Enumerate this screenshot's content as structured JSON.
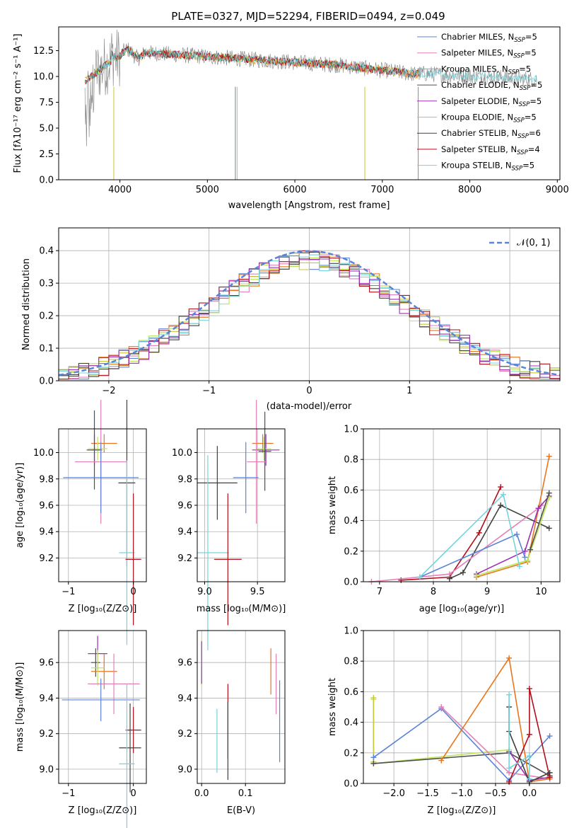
{
  "title": "PLATE=0327, MJD=52294, FIBERID=0494, z=0.049",
  "colors": {
    "chabrier_miles": "#5b84d6",
    "salpeter_miles": "#e57fb8",
    "kroupa_miles": "#56b4d3",
    "chabrier_elodie": "#4f4f4f",
    "salpeter_elodie": "#9b30b3",
    "kroupa_elodie": "#c7c73a",
    "chabrier_stelib": "#404040",
    "salpeter_stelib": "#b0101a",
    "kroupa_stelib": "#74d3dc",
    "orange": "#e8761e",
    "lime": "#bde65a",
    "gray": "#808080"
  },
  "chart_data": [
    {
      "id": "spectrum",
      "type": "line",
      "xlabel": "wavelength [Angstrom, rest frame]",
      "ylabel": "Flux [fλ10⁻¹⁷ erg cm⁻² s⁻¹ A⁻¹]",
      "xlim": [
        3300,
        9030
      ],
      "ylim": [
        0,
        14.8
      ],
      "xticks": [
        "4000",
        "5000",
        "6000",
        "7000",
        "8000",
        "9000"
      ],
      "yticks": [
        "0.0",
        "2.5",
        "5.0",
        "7.5",
        "10.0",
        "12.5"
      ],
      "legend_position": "top-right",
      "legend": [
        {
          "label": "Chabrier MILES, N",
          "sub": "SSP",
          "n": "=5",
          "color": "#5b84d6"
        },
        {
          "label": "Salpeter MILES, N",
          "sub": "SSP",
          "n": "=5",
          "color": "#e57fb8"
        },
        {
          "label": "Kroupa MILES, N",
          "sub": "SSP",
          "n": "=5",
          "color": "#56b4d3"
        },
        {
          "label": "Chabrier ELODIE, N",
          "sub": "SSP",
          "n": "=5",
          "color": "#4f4f4f"
        },
        {
          "label": "Salpeter ELODIE, N",
          "sub": "SSP",
          "n": "=5",
          "color": "#9b30b3"
        },
        {
          "label": "Kroupa ELODIE, N",
          "sub": "SSP",
          "n": "=5",
          "color": "#c7c73a"
        },
        {
          "label": "Chabrier STELIB, N",
          "sub": "SSP",
          "n": "=6",
          "color": "#404040"
        },
        {
          "label": "Salpeter STELIB, N",
          "sub": "SSP",
          "n": "=4",
          "color": "#b0101a"
        },
        {
          "label": "Kroupa STELIB, N",
          "sub": "SSP",
          "n": "=5",
          "color": "#74d3dc"
        }
      ]
    },
    {
      "id": "residual_hist",
      "type": "line",
      "xlabel": "(data-model)/error",
      "ylabel": "Normed distribution",
      "xlim": [
        -2.5,
        2.5
      ],
      "ylim": [
        0,
        0.47
      ],
      "xticks": [
        "−2",
        "−1",
        "0",
        "1",
        "2"
      ],
      "yticks": [
        "0.0",
        "0.1",
        "0.2",
        "0.3",
        "0.4"
      ],
      "legend": "𝒩(0, 1)",
      "legend_position": "top-right",
      "grid": true
    },
    {
      "id": "age_vs_Z",
      "type": "scatter",
      "xlabel": "Z [log₁₀(Z/Z⊙)]",
      "ylabel": "age  [log₁₀(age/yr)]",
      "xlim": [
        -1.15,
        0.2
      ],
      "ylim": [
        9.02,
        10.18
      ],
      "xticks": [
        "−1",
        "0"
      ],
      "yticks": [
        "9.2",
        "9.4",
        "9.6",
        "9.8",
        "10.0"
      ],
      "grid": true
    },
    {
      "id": "age_vs_mass",
      "type": "scatter",
      "xlabel": "mass [log₁₀(M/M⊙)]",
      "xlim": [
        8.93,
        9.76
      ],
      "ylim": [
        9.02,
        10.18
      ],
      "xticks": [
        "9.0",
        "9.5"
      ],
      "yticks": [
        "9.2",
        "9.4",
        "9.6",
        "9.8",
        "10.0"
      ],
      "grid": true
    },
    {
      "id": "weight_vs_age",
      "type": "line",
      "xlabel": "age  [log₁₀(age/yr)]",
      "ylabel": "mass weight",
      "xlim": [
        6.7,
        10.35
      ],
      "ylim": [
        0,
        1.0
      ],
      "xticks": [
        "7",
        "8",
        "9",
        "10"
      ],
      "yticks": [
        "0.0",
        "0.2",
        "0.4",
        "0.6",
        "0.8",
        "1.0"
      ],
      "grid": true
    },
    {
      "id": "mass_vs_Z",
      "type": "scatter",
      "xlabel": "Z [log₁₀(Z/Z⊙)]",
      "ylabel": "mass [log₁₀(M/M⊙)]",
      "xlim": [
        -1.15,
        0.2
      ],
      "ylim": [
        8.92,
        9.78
      ],
      "xticks": [
        "−1",
        "0"
      ],
      "yticks": [
        "9.0",
        "9.2",
        "9.4",
        "9.6"
      ],
      "grid": true
    },
    {
      "id": "mass_vs_ebv",
      "type": "scatter",
      "xlabel": "E(B-V)",
      "xlim": [
        -0.01,
        0.19
      ],
      "ylim": [
        8.92,
        9.78
      ],
      "xticks": [
        "0.0",
        "0.1"
      ],
      "yticks": [
        "9.0",
        "9.2",
        "9.4",
        "9.6"
      ],
      "grid": true
    },
    {
      "id": "weight_vs_Z",
      "type": "line",
      "xlabel": "Z [log₁₀(Z/Z⊙)]",
      "ylabel": "mass weight",
      "xlim": [
        -2.45,
        0.45
      ],
      "ylim": [
        0,
        1.0
      ],
      "xticks": [
        "−2.0",
        "−1.5",
        "−1.0",
        "−0.5",
        "0.0"
      ],
      "yticks": [
        "0.0",
        "0.2",
        "0.4",
        "0.6",
        "0.8",
        "1.0"
      ],
      "grid": true
    }
  ],
  "series": {
    "hist_centers": [
      -2.45,
      -2.35,
      -2.25,
      -2.15,
      -2.05,
      -1.95,
      -1.85,
      -1.75,
      -1.65,
      -1.55,
      -1.45,
      -1.35,
      -1.25,
      -1.15,
      -1.05,
      -0.95,
      -0.85,
      -0.75,
      -0.65,
      -0.55,
      -0.45,
      -0.35,
      -0.25,
      -0.15,
      -0.05,
      0.05,
      0.15,
      0.25,
      0.35,
      0.45,
      0.55,
      0.65,
      0.75,
      0.85,
      0.95,
      1.05,
      1.15,
      1.25,
      1.35,
      1.45,
      1.55,
      1.65,
      1.75,
      1.85,
      1.95,
      2.05,
      2.15,
      2.25,
      2.35,
      2.45
    ],
    "age_Z_points": [
      {
        "x": -0.45,
        "y": 10.07,
        "xe": 0.2,
        "ye": 0.07,
        "c": "#e8761e"
      },
      {
        "x": -0.6,
        "y": 10.02,
        "xe": 0.1,
        "ye": 0.12,
        "c": "#9b30b3"
      },
      {
        "x": -0.55,
        "y": 10.03,
        "xe": 0.15,
        "ye": 0.09,
        "c": "#bde65a"
      },
      {
        "x": -0.6,
        "y": 10.02,
        "xe": 0.12,
        "ye": 0.3,
        "c": "#4f4f4f"
      },
      {
        "x": -0.5,
        "y": 9.93,
        "xe": 0.4,
        "ye": 0.47,
        "c": "#e57fb8"
      },
      {
        "x": -0.5,
        "y": 9.81,
        "xe": 0.58,
        "ye": 0.27,
        "c": "#5b84d6"
      },
      {
        "x": -0.1,
        "y": 9.77,
        "xe": 0.13,
        "ye": 0.63,
        "c": "#404040"
      },
      {
        "x": -0.1,
        "y": 9.24,
        "xe": 0.12,
        "ye": 0.7,
        "c": "#74d3dc"
      },
      {
        "x": 0.0,
        "y": 9.19,
        "xe": 0.12,
        "ye": 0.5,
        "c": "#b0101a"
      }
    ],
    "age_mass_points": [
      {
        "x": 9.55,
        "y": 10.07,
        "xe": 0.1,
        "ye": 0.07,
        "c": "#e8761e"
      },
      {
        "x": 9.58,
        "y": 10.02,
        "xe": 0.13,
        "ye": 0.12,
        "c": "#9b30b3"
      },
      {
        "x": 9.56,
        "y": 10.03,
        "xe": 0.07,
        "ye": 0.09,
        "c": "#bde65a"
      },
      {
        "x": 9.57,
        "y": 10.01,
        "xe": 0.06,
        "ye": 0.3,
        "c": "#4f4f4f"
      },
      {
        "x": 9.49,
        "y": 9.93,
        "xe": 0.09,
        "ye": 0.47,
        "c": "#e57fb8"
      },
      {
        "x": 9.39,
        "y": 9.81,
        "xe": 0.12,
        "ye": 0.27,
        "c": "#5b84d6"
      },
      {
        "x": 9.12,
        "y": 9.77,
        "xe": 0.19,
        "ye": 0.28,
        "c": "#404040"
      },
      {
        "x": 9.03,
        "y": 9.24,
        "xe": 0.2,
        "ye": 0.74,
        "c": "#74d3dc"
      },
      {
        "x": 9.22,
        "y": 9.19,
        "xe": 0.13,
        "ye": 0.5,
        "c": "#b0101a"
      }
    ],
    "mass_Z_points": [
      {
        "x": -0.55,
        "y": 9.65,
        "xe": 0.15,
        "ye": 0.1,
        "c": "#9b30b3"
      },
      {
        "x": -0.58,
        "y": 9.6,
        "xe": 0.07,
        "ye": 0.08,
        "c": "#4f4f4f"
      },
      {
        "x": -0.45,
        "y": 9.55,
        "xe": 0.2,
        "ye": 0.1,
        "c": "#e8761e"
      },
      {
        "x": -0.55,
        "y": 9.57,
        "xe": 0.1,
        "ye": 0.1,
        "c": "#bde65a"
      },
      {
        "x": -0.3,
        "y": 9.48,
        "xe": 0.4,
        "ye": 0.17,
        "c": "#e57fb8"
      },
      {
        "x": -0.5,
        "y": 9.39,
        "xe": 0.6,
        "ye": 0.12,
        "c": "#5b84d6"
      },
      {
        "x": 0.0,
        "y": 9.22,
        "xe": 0.12,
        "ye": 0.13,
        "c": "#b0101a"
      },
      {
        "x": -0.05,
        "y": 9.12,
        "xe": 0.17,
        "ye": 0.25,
        "c": "#404040"
      },
      {
        "x": -0.1,
        "y": 9.03,
        "xe": 0.12,
        "ye": 0.45,
        "c": "#74d3dc"
      }
    ],
    "mass_ebv_points": [
      {
        "x": 0.0,
        "y": 9.6,
        "ye": 0.13,
        "c": "#bde65a"
      },
      {
        "x": 0.0,
        "y": 9.6,
        "ye": 0.12,
        "c": "#9b30b3"
      },
      {
        "x": 0.035,
        "y": 9.16,
        "ye": 0.18,
        "c": "#74d3dc"
      },
      {
        "x": 0.06,
        "y": 9.27,
        "ye": 0.21,
        "c": "#b0101a"
      },
      {
        "x": 0.06,
        "y": 9.16,
        "ye": 0.22,
        "c": "#404040"
      },
      {
        "x": 0.158,
        "y": 9.55,
        "ye": 0.13,
        "c": "#e8761e"
      },
      {
        "x": 0.17,
        "y": 9.48,
        "ye": 0.17,
        "c": "#e57fb8"
      },
      {
        "x": 0.178,
        "y": 9.27,
        "ye": 0.23,
        "c": "#5b84d6"
      }
    ],
    "weight_age_lines": [
      {
        "c": "#b0101a",
        "x": [
          7.4,
          8.3,
          8.85,
          9.25
        ],
        "y": [
          0.01,
          0.03,
          0.32,
          0.62
        ]
      },
      {
        "c": "#404040",
        "x": [
          8.3,
          8.55,
          9.25,
          10.15
        ],
        "y": [
          0.02,
          0.06,
          0.5,
          0.35
        ]
      },
      {
        "c": "#e57fb8",
        "x": [
          6.85,
          8.3,
          9.95,
          10.0
        ],
        "y": [
          0.0,
          0.05,
          0.48,
          0.5
        ]
      },
      {
        "c": "#e8761e",
        "x": [
          8.8,
          9.75,
          10.15
        ],
        "y": [
          0.03,
          0.13,
          0.82
        ]
      },
      {
        "c": "#9b30b3",
        "x": [
          8.8,
          9.7,
          9.95,
          10.15
        ],
        "y": [
          0.05,
          0.2,
          0.48,
          0.56
        ]
      },
      {
        "c": "#bde65a",
        "x": [
          8.8,
          9.75,
          10.15
        ],
        "y": [
          0.04,
          0.14,
          0.55
        ]
      },
      {
        "c": "#5b84d6",
        "x": [
          7.75,
          9.55,
          9.7
        ],
        "y": [
          0.03,
          0.31,
          0.16
        ]
      },
      {
        "c": "#74d3dc",
        "x": [
          7.75,
          9.3,
          9.6
        ],
        "y": [
          0.03,
          0.57,
          0.1
        ]
      },
      {
        "c": "#4f4f4f",
        "x": [
          9.8,
          10.15
        ],
        "y": [
          0.21,
          0.58
        ]
      }
    ],
    "weight_Z_lines": [
      {
        "c": "#bde65a",
        "x": [
          -2.3,
          -2.3,
          -0.3
        ],
        "y": [
          0.55,
          0.13,
          0.22
        ]
      },
      {
        "c": "#c7c73a",
        "x": [
          -2.3,
          -2.3
        ],
        "y": [
          0.56,
          0.14
        ]
      },
      {
        "c": "#4f4f4f",
        "x": [
          -2.3,
          -0.3,
          0.3
        ],
        "y": [
          0.13,
          0.2,
          0.05
        ]
      },
      {
        "c": "#5b84d6",
        "x": [
          -2.3,
          -1.3,
          -0.3,
          0.3
        ],
        "y": [
          0.17,
          0.49,
          0.02,
          0.31
        ]
      },
      {
        "c": "#e57fb8",
        "x": [
          -1.3,
          -0.3,
          0.3
        ],
        "y": [
          0.5,
          0.07,
          0.03
        ]
      },
      {
        "c": "#e8761e",
        "x": [
          -1.3,
          -0.3,
          0.0,
          0.3
        ],
        "y": [
          0.15,
          0.82,
          0.01,
          0.03
        ]
      },
      {
        "c": "#9b30b3",
        "x": [
          -0.3,
          0.0,
          0.3
        ],
        "y": [
          0.21,
          0.02,
          0.04
        ]
      },
      {
        "c": "#b0101a",
        "x": [
          -0.3,
          0.0,
          0.0,
          0.3
        ],
        "y": [
          0.01,
          0.32,
          0.62,
          0.04
        ]
      },
      {
        "c": "#404040",
        "x": [
          -0.3,
          -0.3,
          0.0,
          0.3
        ],
        "y": [
          0.5,
          0.34,
          0.01,
          0.07
        ]
      },
      {
        "c": "#74d3dc",
        "x": [
          -0.3,
          -0.3,
          0.0,
          0.0
        ],
        "y": [
          0.58,
          0.1,
          0.18,
          0.03
        ]
      }
    ]
  }
}
